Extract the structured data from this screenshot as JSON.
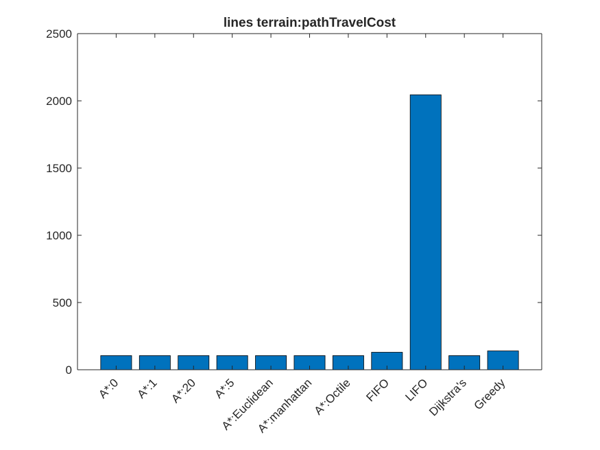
{
  "chart_data": {
    "type": "bar",
    "title": "lines terrain:pathTravelCost",
    "xlabel": "",
    "ylabel": "",
    "categories": [
      "A*:0",
      "A*:1",
      "A*:20",
      "A*:5",
      "A*:Euclidean",
      "A*:manhattan",
      "A*:Octile",
      "FIFO",
      "LIFO",
      "Dijkstra's",
      "Greedy"
    ],
    "values": [
      105,
      105,
      105,
      105,
      105,
      105,
      105,
      130,
      2045,
      105,
      140
    ],
    "ylim": [
      0,
      2500
    ],
    "yticks": [
      0,
      500,
      1000,
      1500,
      2000,
      2500
    ],
    "bar_color": "#0072BD",
    "grid": false,
    "legend": "none"
  }
}
